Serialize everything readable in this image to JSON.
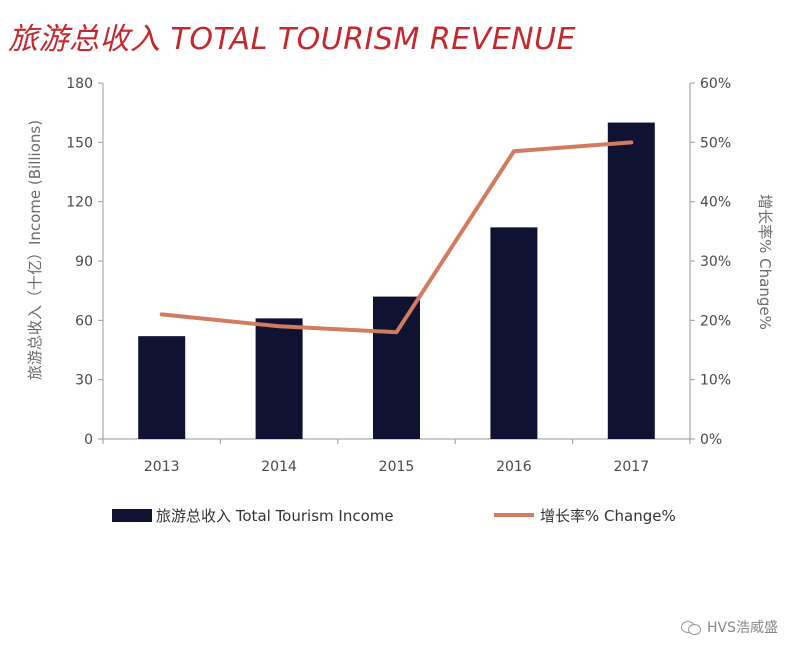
{
  "title": "旅游总收入 TOTAL TOURISM REVENUE",
  "watermark": "HVS浩威盛",
  "chart_data": {
    "type": "bar",
    "categories": [
      "2013",
      "2014",
      "2015",
      "2016",
      "2017"
    ],
    "series": [
      {
        "name": "旅游总收入 Total Tourism Income",
        "type": "bar",
        "axis": "left",
        "color": "#0f1230",
        "values": [
          52,
          61,
          72,
          107,
          160
        ]
      },
      {
        "name": "增长率% Change%",
        "type": "line",
        "axis": "right",
        "color": "#d17b61",
        "values": [
          21,
          19,
          18,
          48.5,
          50
        ]
      }
    ],
    "ylabel": "旅游总收入（十亿）Income (Billions)",
    "y2label": "增长率% Change%",
    "ylim": [
      0,
      180
    ],
    "yticks": [
      0,
      30,
      60,
      90,
      120,
      150,
      180
    ],
    "y2lim": [
      0,
      60
    ],
    "y2ticks": [
      "0%",
      "10%",
      "20%",
      "30%",
      "40%",
      "50%",
      "60%"
    ],
    "legend_position": "bottom",
    "grid": false
  }
}
